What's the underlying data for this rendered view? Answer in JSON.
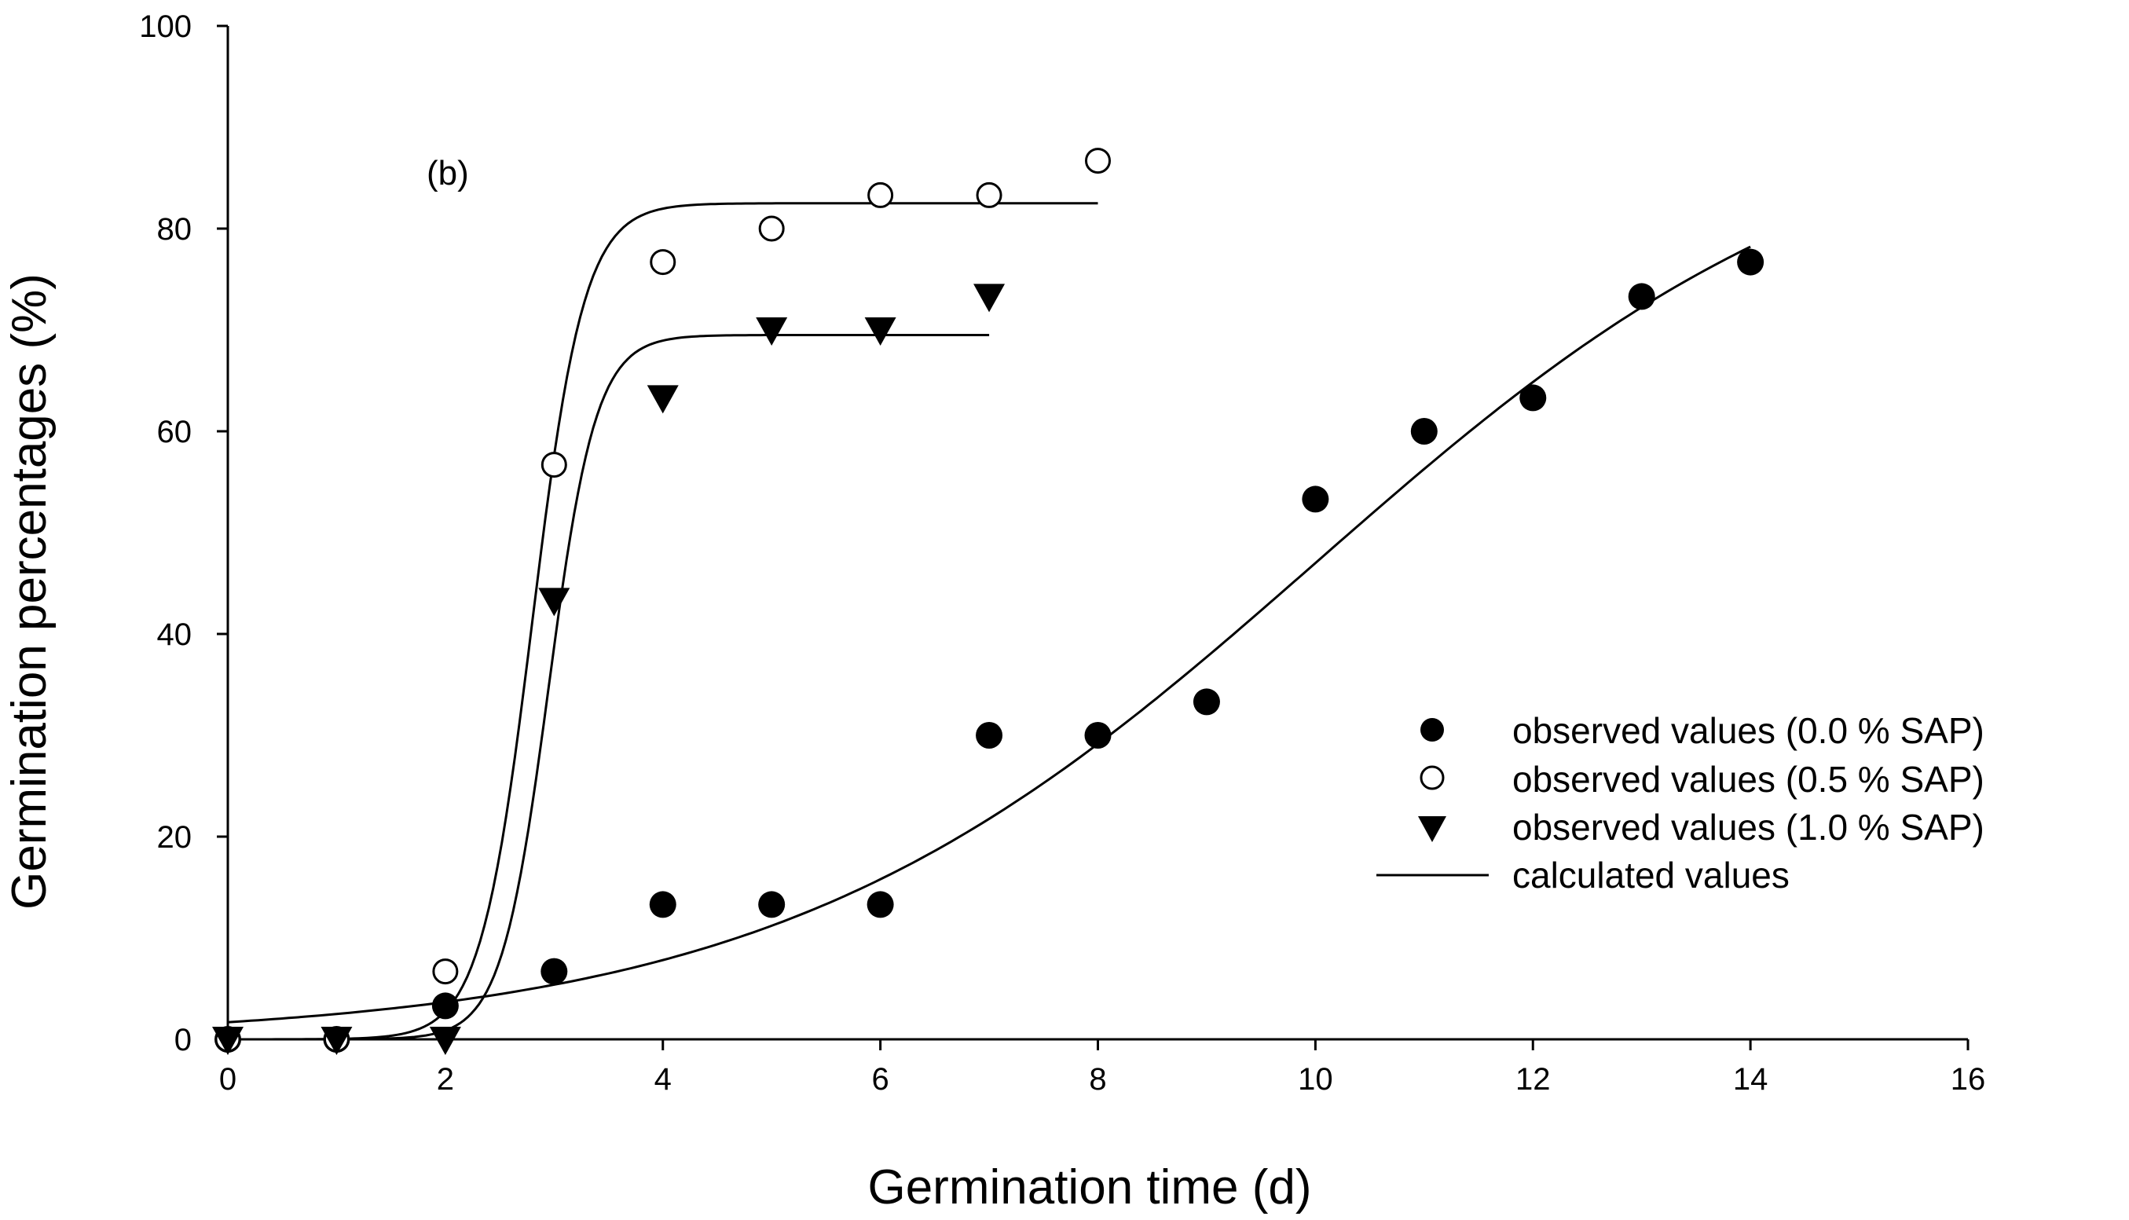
{
  "chart_data": {
    "type": "scatter",
    "panel_label": "(b)",
    "xlabel": "Germination time (d)",
    "ylabel": "Germination percentages (%)",
    "xlim": [
      0,
      16
    ],
    "ylim": [
      0,
      100
    ],
    "x_ticks": [
      0,
      2,
      4,
      6,
      8,
      10,
      12,
      14,
      16
    ],
    "y_ticks": [
      0,
      20,
      40,
      60,
      80,
      100
    ],
    "x_tick_labels": [
      "0",
      "2",
      "4",
      "6",
      "8",
      "10",
      "12",
      "14",
      "16"
    ],
    "y_tick_labels": [
      "0",
      "20",
      "40",
      "60",
      "80",
      "100"
    ],
    "grid": false,
    "legend_position": "right",
    "series": [
      {
        "name": "observed values (0.0 % SAP)",
        "marker": "filled-circle",
        "x": [
          0,
          1,
          2,
          3,
          4,
          5,
          6,
          7,
          8,
          9,
          10,
          11,
          12,
          13,
          14
        ],
        "values": [
          0,
          0,
          3.3,
          6.7,
          13.3,
          13.3,
          13.3,
          30,
          30,
          33.3,
          53.3,
          60,
          63.3,
          73.3,
          76.7
        ]
      },
      {
        "name": "observed values (0.5 % SAP)",
        "marker": "open-circle",
        "x": [
          0,
          1,
          2,
          3,
          4,
          5,
          6,
          7,
          8
        ],
        "values": [
          0,
          0,
          6.7,
          56.7,
          76.7,
          80,
          83.3,
          83.3,
          86.7
        ]
      },
      {
        "name": "observed values (1.0 % SAP)",
        "marker": "filled-triangle-down",
        "x": [
          0,
          1,
          2,
          3,
          4,
          5,
          6,
          7
        ],
        "values": [
          0,
          0,
          0,
          43.3,
          63.3,
          70,
          70,
          73.3
        ]
      }
    ],
    "fitted_curves": {
      "legend_label": "calculated values",
      "curves": [
        {
          "series": "observed values (0.0 % SAP)",
          "model": "logistic",
          "a": 94,
          "x0": 10,
          "b": 0.4,
          "x_range": [
            0,
            14
          ]
        },
        {
          "series": "observed values (0.5 % SAP)",
          "model": "logistic",
          "a": 82.5,
          "x0": 2.8,
          "b": 4.2,
          "x_range": [
            0,
            8
          ]
        },
        {
          "series": "observed values (1.0 % SAP)",
          "model": "logistic",
          "a": 69.5,
          "x0": 2.95,
          "b": 4.6,
          "x_range": [
            0,
            7
          ]
        }
      ]
    }
  }
}
